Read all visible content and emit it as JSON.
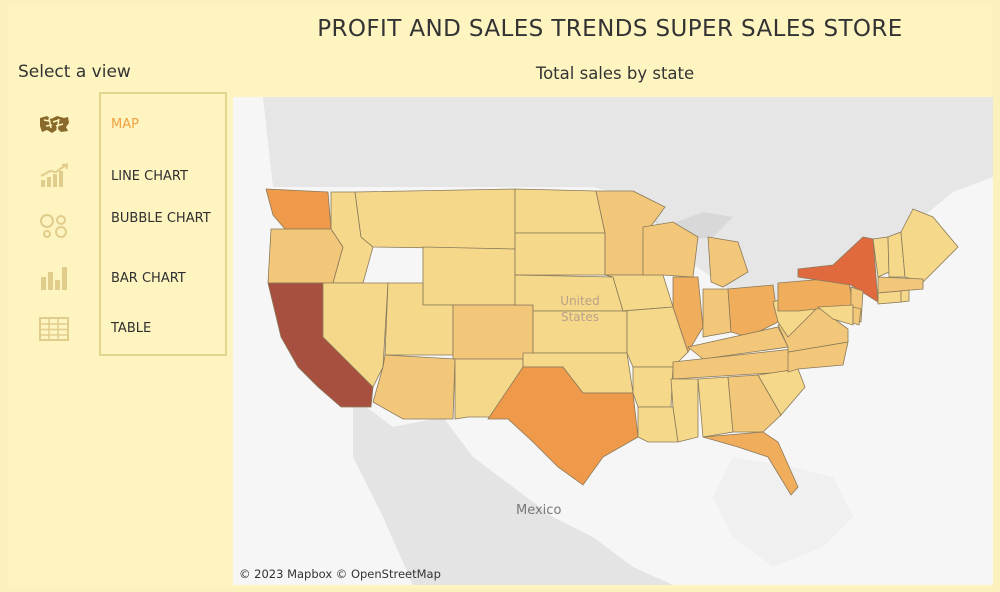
{
  "header": {
    "title": "PROFIT AND SALES TRENDS SUPER SALES STORE",
    "subtitle": "Total sales by state"
  },
  "sidebar": {
    "heading": "Select a view",
    "items": [
      {
        "label": "MAP",
        "icon": "map-icon",
        "active": true
      },
      {
        "label": "LINE CHART",
        "icon": "line-chart-icon",
        "active": false
      },
      {
        "label": "BUBBLE CHART",
        "icon": "bubble-chart-icon",
        "active": false
      },
      {
        "label": "BAR CHART",
        "icon": "bar-chart-icon",
        "active": false
      },
      {
        "label": "TABLE",
        "icon": "table-icon",
        "active": false
      }
    ]
  },
  "map": {
    "country_label": "United States",
    "neighbor_label": "Mexico",
    "attribution": "© 2023 Mapbox © OpenStreetMap",
    "colors": {
      "lowest": "#f5d88a",
      "low": "#f2c77a",
      "mid": "#f0ad5c",
      "high": "#ee9a4a",
      "very_high": "#e06a3e",
      "highest": "#a8503f"
    }
  }
}
